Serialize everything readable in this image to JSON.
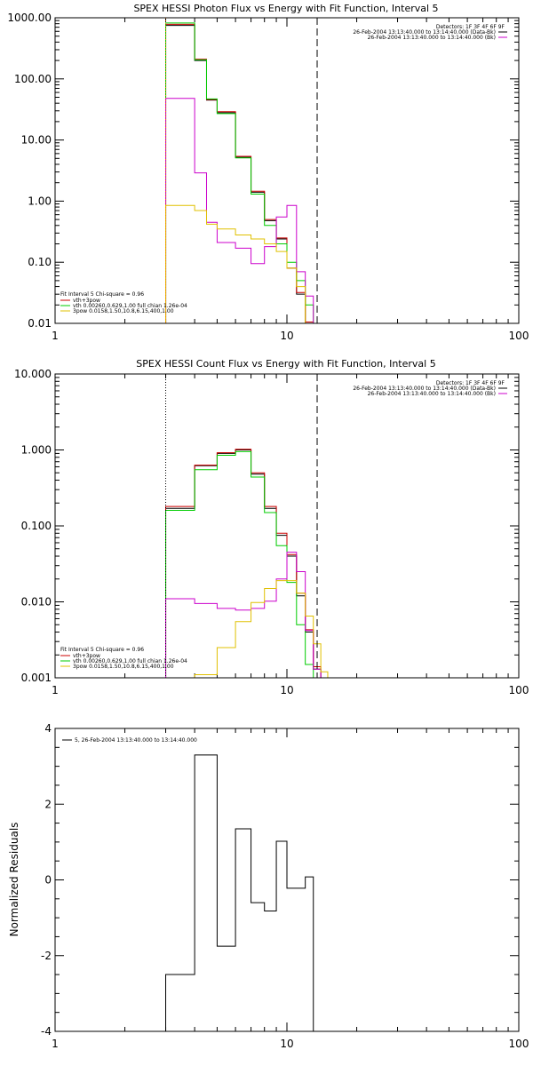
{
  "chart_data": [
    {
      "type": "line",
      "title": "SPEX HESSI Photon Flux vs Energy with Fit Function, Interval 5",
      "xlabel": "",
      "ylabel": "",
      "x_scale": "log",
      "y_scale": "log",
      "xlim": [
        1,
        100
      ],
      "ylim": [
        0.01,
        1000
      ],
      "x_ticks": [
        1,
        10,
        100
      ],
      "x_tick_labels": [
        "1",
        "10",
        "100"
      ],
      "y_ticks": [
        0.01,
        0.1,
        1,
        10,
        100,
        1000
      ],
      "y_tick_labels": [
        "0.01",
        "0.10",
        "1.00",
        "10.00",
        "100.00",
        "1000.00"
      ],
      "vlines": [
        {
          "x": 3.0,
          "style": "dotted",
          "color": "#ff8000"
        },
        {
          "x": 13.5,
          "style": "dashed",
          "color": "#000000"
        }
      ],
      "legend_top": [
        {
          "text": "Detectors: 1F 3F 4F 6F 9F",
          "color": ""
        },
        {
          "text": "26-Feb-2004 13:13:40.000 to 13:14:40.000 (Data-Bk)",
          "color": "#000000"
        },
        {
          "text": "26-Feb-2004 13:13:40.000 to 13:14:40.000 (Bk)",
          "color": "#cc00cc"
        }
      ],
      "legend_bottom": [
        {
          "text": "Fit Interval 5   Chi-square = 0.96",
          "color": ""
        },
        {
          "text": "vth+3pow",
          "color": "#cc0000"
        },
        {
          "text": "vth 0.00260,0.629,1.00  full chian 1.26e-04",
          "color": "#00cc00"
        },
        {
          "text": "3pow 0.0158,1.50,10.8,6.15,400,1.00",
          "color": "#e0c000"
        }
      ],
      "edges": [
        3.0,
        3.5,
        4.0,
        4.5,
        5.0,
        6.0,
        7.0,
        8.0,
        9.0,
        10.0,
        11.0,
        12.0,
        13.0,
        14.0,
        15.0
      ],
      "series": [
        {
          "name": "",
          "color": "#000000",
          "values": [
            750,
            750,
            200,
            45,
            28,
            5.2,
            1.4,
            0.48,
            0.24,
            0.08,
            0.03,
            0.01,
            null,
            null
          ]
        },
        {
          "name": "",
          "color": "#cc0000",
          "values": [
            780,
            780,
            210,
            46,
            29,
            5.4,
            1.45,
            0.5,
            0.25,
            0.08,
            0.032,
            0.0105,
            null,
            null
          ]
        },
        {
          "name": "",
          "color": "#00cc00",
          "values": [
            820,
            820,
            205,
            47,
            27,
            5.1,
            1.3,
            0.4,
            0.2,
            0.1,
            0.05,
            0.02,
            0.008,
            null
          ]
        },
        {
          "name": "",
          "color": "#cc00cc",
          "values": [
            48,
            48,
            2.9,
            0.45,
            0.21,
            0.17,
            0.095,
            0.18,
            0.55,
            0.85,
            0.07,
            0.028,
            0.01,
            null
          ]
        },
        {
          "name": "",
          "color": "#e0c000",
          "values": [
            0.85,
            0.85,
            0.7,
            0.42,
            0.35,
            0.28,
            0.24,
            0.2,
            0.15,
            0.08,
            0.04,
            null,
            null,
            null
          ]
        }
      ]
    },
    {
      "type": "line",
      "title": "SPEX HESSI Count Flux vs Energy with Fit Function, Interval 5",
      "xlabel": "",
      "ylabel": "",
      "x_scale": "log",
      "y_scale": "log",
      "xlim": [
        1,
        100
      ],
      "ylim": [
        0.001,
        10
      ],
      "x_ticks": [
        1,
        10,
        100
      ],
      "x_tick_labels": [
        "1",
        "10",
        "100"
      ],
      "y_ticks": [
        0.001,
        0.01,
        0.1,
        1,
        10
      ],
      "y_tick_labels": [
        "0.001",
        "0.010",
        "0.100",
        "1.000",
        "10.000"
      ],
      "vlines": [
        {
          "x": 3.0,
          "style": "dotted",
          "color": "#000000"
        },
        {
          "x": 13.5,
          "style": "dashed",
          "color": "#000000"
        }
      ],
      "legend_top": [
        {
          "text": "Detectors: 1F 3F 4F 6F 9F",
          "color": ""
        },
        {
          "text": "26-Feb-2004 13:13:40.000 to 13:14:40.000 (Data-Bk)",
          "color": "#000000"
        },
        {
          "text": "26-Feb-2004 13:13:40.000 to 13:14:40.000 (Bk)",
          "color": "#cc00cc"
        }
      ],
      "legend_bottom": [
        {
          "text": "Fit Interval 5   Chi-square = 0.96",
          "color": ""
        },
        {
          "text": "vth+3pow",
          "color": "#cc0000"
        },
        {
          "text": "vth 0.00260,0.629,1.00  full chian 1.26e-04",
          "color": "#00cc00"
        },
        {
          "text": "3pow 0.0158,1.50,10.8,6.15,400,1.00",
          "color": "#e0c000"
        }
      ],
      "edges": [
        3.0,
        4.0,
        5.0,
        6.0,
        7.0,
        8.0,
        9.0,
        10.0,
        11.0,
        12.0,
        13.0,
        14.0,
        15.0
      ],
      "series": [
        {
          "name": "",
          "color": "#000000",
          "values": [
            0.17,
            0.62,
            0.9,
            1.0,
            0.48,
            0.17,
            0.075,
            0.04,
            0.012,
            0.004,
            0.0013,
            null
          ]
        },
        {
          "name": "",
          "color": "#cc0000",
          "values": [
            0.18,
            0.63,
            0.92,
            1.02,
            0.5,
            0.18,
            0.08,
            0.042,
            0.013,
            0.0043,
            0.0014,
            null
          ]
        },
        {
          "name": "",
          "color": "#00cc00",
          "values": [
            0.16,
            0.55,
            0.85,
            0.95,
            0.44,
            0.15,
            0.055,
            0.018,
            0.005,
            0.0015,
            null,
            null
          ]
        },
        {
          "name": "",
          "color": "#cc00cc",
          "values": [
            0.011,
            0.0095,
            0.0082,
            0.0078,
            0.0082,
            0.0102,
            0.02,
            0.045,
            0.025,
            0.0042,
            0.0013,
            null
          ]
        },
        {
          "name": "",
          "color": "#e0c000",
          "values": [
            null,
            0.0011,
            0.0025,
            0.0055,
            0.0098,
            0.015,
            0.019,
            0.019,
            0.013,
            0.0065,
            0.0028,
            0.0012
          ]
        }
      ]
    },
    {
      "type": "line",
      "title": "",
      "xlabel": "",
      "ylabel": "Normalized Residuals",
      "x_scale": "log",
      "y_scale": "linear",
      "xlim": [
        1,
        100
      ],
      "ylim": [
        -4,
        4
      ],
      "x_ticks": [
        1,
        10,
        100
      ],
      "x_tick_labels": [
        "1",
        "10",
        "100"
      ],
      "y_ticks": [
        -4,
        -2,
        0,
        2,
        4
      ],
      "y_tick_labels": [
        "-4",
        "-2",
        "0",
        "2",
        "4"
      ],
      "legend_top": [
        {
          "text": "5, 26-Feb-2004 13:13:40.000 to 13:14:40.000",
          "color": "#000000"
        }
      ],
      "edges": [
        3.0,
        4.0,
        5.0,
        6.0,
        7.0,
        8.0,
        9.0,
        10.0,
        11.0,
        12.0,
        13.0
      ],
      "series": [
        {
          "name": "",
          "color": "#000000",
          "values": [
            -2.5,
            3.3,
            -1.75,
            1.35,
            -0.6,
            -0.82,
            1.02,
            -0.22,
            -0.22,
            0.08
          ]
        }
      ]
    }
  ]
}
